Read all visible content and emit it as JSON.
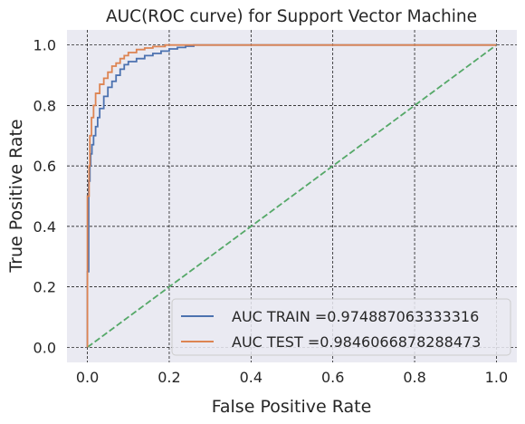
{
  "chart_data": {
    "type": "line",
    "title": "AUC(ROC curve) for Support Vector Machine",
    "xlabel": "False Positive Rate",
    "ylabel": "True Positive Rate",
    "xlim": [
      -0.05,
      1.05
    ],
    "ylim": [
      -0.05,
      1.05
    ],
    "xticks": [
      0.0,
      0.2,
      0.4,
      0.6,
      0.8,
      1.0
    ],
    "yticks": [
      0.0,
      0.2,
      0.4,
      0.6,
      0.8,
      1.0
    ],
    "xtick_labels": [
      "0.0",
      "0.2",
      "0.4",
      "0.6",
      "0.8",
      "1.0"
    ],
    "ytick_labels": [
      "0.0",
      "0.2",
      "0.4",
      "0.6",
      "0.8",
      "1.0"
    ],
    "grid": true,
    "background": "#eaeaf2",
    "legend_position": "lower-right",
    "series": [
      {
        "name": "AUC TRAIN =0.974887063333316",
        "color": "#4c72b0",
        "style": "step",
        "x": [
          0.0,
          0.0,
          0.003,
          0.003,
          0.006,
          0.008,
          0.011,
          0.015,
          0.02,
          0.025,
          0.03,
          0.04,
          0.05,
          0.06,
          0.07,
          0.08,
          0.09,
          0.1,
          0.12,
          0.14,
          0.16,
          0.18,
          0.2,
          0.22,
          0.24,
          0.26,
          0.3,
          0.5,
          1.0
        ],
        "y": [
          0.0,
          0.25,
          0.45,
          0.55,
          0.6,
          0.64,
          0.67,
          0.7,
          0.73,
          0.76,
          0.79,
          0.83,
          0.86,
          0.88,
          0.9,
          0.92,
          0.935,
          0.945,
          0.955,
          0.965,
          0.972,
          0.98,
          0.987,
          0.992,
          0.996,
          1.0,
          1.0,
          1.0,
          1.0
        ]
      },
      {
        "name": "AUC TEST =0.9846066878288473",
        "color": "#dd8452",
        "style": "step",
        "x": [
          0.0,
          0.0,
          0.004,
          0.006,
          0.01,
          0.015,
          0.02,
          0.03,
          0.04,
          0.05,
          0.06,
          0.07,
          0.08,
          0.09,
          0.1,
          0.12,
          0.14,
          0.16,
          0.19,
          0.22,
          0.26,
          0.4,
          1.0
        ],
        "y": [
          0.0,
          0.5,
          0.6,
          0.7,
          0.76,
          0.8,
          0.84,
          0.87,
          0.89,
          0.91,
          0.93,
          0.94,
          0.955,
          0.965,
          0.975,
          0.985,
          0.99,
          0.995,
          1.0,
          1.0,
          1.0,
          1.0,
          1.0
        ]
      },
      {
        "name": "",
        "color": "#55a868",
        "style": "dashed",
        "x": [
          0.0,
          1.0
        ],
        "y": [
          0.0,
          1.0
        ]
      }
    ]
  }
}
